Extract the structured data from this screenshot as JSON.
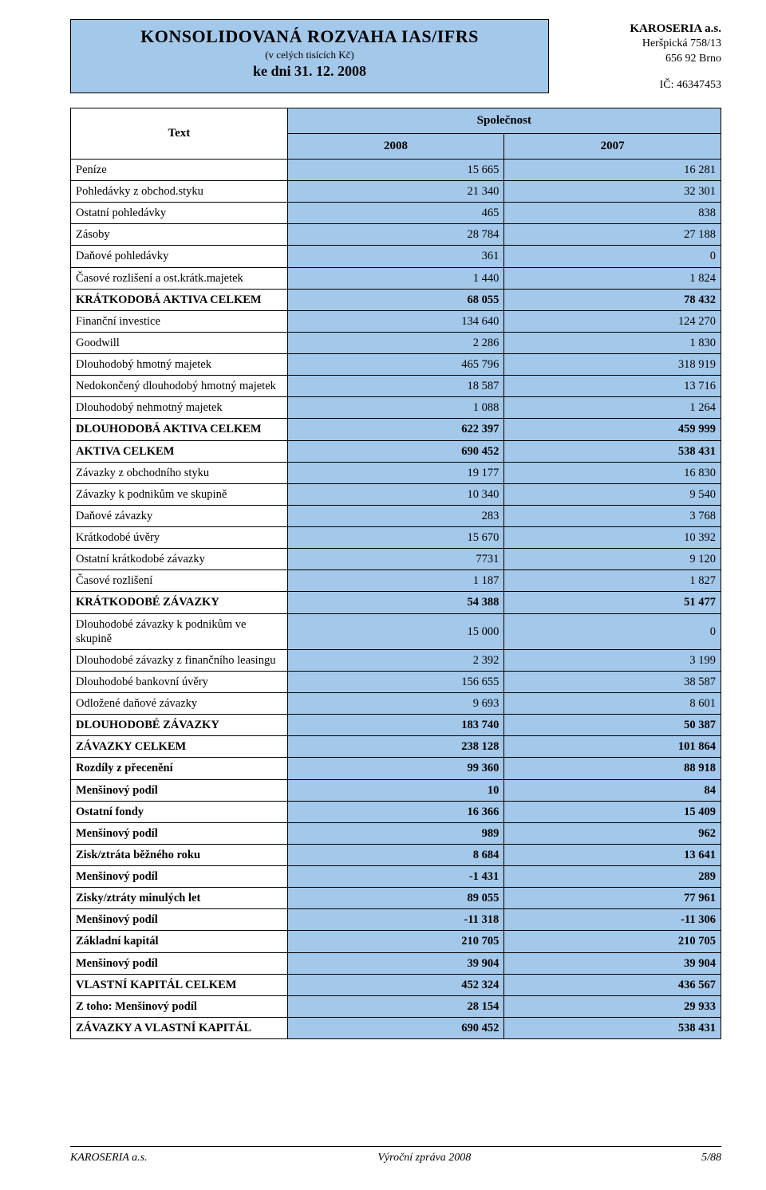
{
  "header": {
    "title": "KONSOLIDOVANÁ ROZVAHA IAS/IFRS",
    "subtitle": "(v celých tisících Kč)",
    "date_line": "ke dni 31. 12. 2008",
    "bg": "#a4c8ea"
  },
  "company": {
    "name": "KAROSERIA a.s.",
    "addr1": "Heršpická 758/13",
    "addr2": "656 92 Brno",
    "ic": "IČ: 46347453"
  },
  "table": {
    "head_text": "Text",
    "head_company": "Společnost",
    "year1": "2008",
    "year2": "2007",
    "rows": [
      {
        "label": "Peníze",
        "y1": "15 665",
        "y2": "16 281",
        "hl": true
      },
      {
        "label": "Pohledávky z obchod.styku",
        "y1": "21 340",
        "y2": "32 301",
        "hl": true
      },
      {
        "label": "Ostatní pohledávky",
        "y1": "465",
        "y2": "838",
        "hl": true
      },
      {
        "label": "Zásoby",
        "y1": "28 784",
        "y2": "27 188",
        "hl": true
      },
      {
        "label": "Daňové pohledávky",
        "y1": "361",
        "y2": "0",
        "hl": true
      },
      {
        "label": "Časové rozlišení a ost.krátk.majetek",
        "y1": "1 440",
        "y2": "1 824",
        "hl": true
      },
      {
        "label": "KRÁTKODOBÁ AKTIVA CELKEM",
        "y1": "68 055",
        "y2": "78 432",
        "hl": true,
        "bold": true
      },
      {
        "label": "Finanční investice",
        "y1": "134 640",
        "y2": "124 270",
        "hl": true
      },
      {
        "label": "Goodwill",
        "y1": "2 286",
        "y2": "1 830",
        "hl": true
      },
      {
        "label": "Dlouhodobý hmotný majetek",
        "y1": "465 796",
        "y2": "318 919",
        "hl": true
      },
      {
        "label": "Nedokončený dlouhodobý hmotný majetek",
        "y1": "18 587",
        "y2": "13 716",
        "hl": true
      },
      {
        "label": "Dlouhodobý nehmotný majetek",
        "y1": "1 088",
        "y2": "1 264",
        "hl": true
      },
      {
        "label": "DLOUHODOBÁ AKTIVA CELKEM",
        "y1": "622 397",
        "y2": "459 999",
        "hl": true,
        "bold": true
      },
      {
        "label": "AKTIVA CELKEM",
        "y1": "690 452",
        "y2": "538 431",
        "hl": true,
        "bold": true
      },
      {
        "label": "Závazky z obchodního styku",
        "y1": "19 177",
        "y2": "16 830",
        "hl": true
      },
      {
        "label": "Závazky k podnikům ve skupině",
        "y1": "10 340",
        "y2": "9 540",
        "hl": true
      },
      {
        "label": "Daňové závazky",
        "y1": "283",
        "y2": "3 768",
        "hl": true
      },
      {
        "label": "Krátkodobé úvěry",
        "y1": "15 670",
        "y2": "10 392",
        "hl": true
      },
      {
        "label": "Ostatní krátkodobé závazky",
        "y1": "7731",
        "y2": "9 120",
        "hl": true
      },
      {
        "label": "Časové rozlišení",
        "y1": "1 187",
        "y2": "1 827",
        "hl": true
      },
      {
        "label": "KRÁTKODOBÉ ZÁVAZKY",
        "y1": "54 388",
        "y2": "51 477",
        "hl": true,
        "bold": true
      },
      {
        "label": "Dlouhodobé závazky k podnikům ve skupině",
        "y1": "15 000",
        "y2": "0",
        "hl": true
      },
      {
        "label": "Dlouhodobé závazky z finančního leasingu",
        "y1": "2 392",
        "y2": "3 199",
        "hl": true
      },
      {
        "label": "Dlouhodobé bankovní úvěry",
        "y1": "156 655",
        "y2": "38 587",
        "hl": true
      },
      {
        "label": "Odložené daňové závazky",
        "y1": "9 693",
        "y2": "8 601",
        "hl": true
      },
      {
        "label": "DLOUHODOBÉ ZÁVAZKY",
        "y1": "183 740",
        "y2": "50 387",
        "hl": true,
        "bold": true
      },
      {
        "label": "ZÁVAZKY CELKEM",
        "y1": "238 128",
        "y2": "101 864",
        "hl": true,
        "bold": true
      },
      {
        "label": "Rozdíly z přecenění",
        "y1": "99 360",
        "y2": "88 918",
        "hl": true,
        "bold": true
      },
      {
        "label": "Menšinový podíl",
        "y1": "10",
        "y2": "84",
        "hl": true,
        "bold": true
      },
      {
        "label": "Ostatní fondy",
        "y1": "16 366",
        "y2": "15 409",
        "hl": true,
        "bold": true
      },
      {
        "label": "Menšinový podíl",
        "y1": "989",
        "y2": "962",
        "hl": true,
        "bold": true
      },
      {
        "label": "Zisk/ztráta běžného roku",
        "y1": "8 684",
        "y2": "13 641",
        "hl": true,
        "bold": true
      },
      {
        "label": "Menšinový podíl",
        "y1": "-1 431",
        "y2": "289",
        "hl": true,
        "bold": true
      },
      {
        "label": "Zisky/ztráty minulých let",
        "y1": "89 055",
        "y2": "77 961",
        "hl": true,
        "bold": true
      },
      {
        "label": "Menšinový podíl",
        "y1": "-11 318",
        "y2": "-11 306",
        "hl": true,
        "bold": true
      },
      {
        "label": "Základní kapitál",
        "y1": "210 705",
        "y2": "210 705",
        "hl": true,
        "bold": true
      },
      {
        "label": "Menšinový podíl",
        "y1": "39 904",
        "y2": "39 904",
        "hl": true,
        "bold": true
      },
      {
        "label": "VLASTNÍ  KAPITÁL CELKEM",
        "y1": "452 324",
        "y2": "436 567",
        "hl": true,
        "bold": true
      },
      {
        "label": "Z toho: Menšinový podíl",
        "y1": "28 154",
        "y2": "29 933",
        "hl": true,
        "bold": true
      },
      {
        "label": "ZÁVAZKY A VLASTNÍ KAPITÁL",
        "y1": "690 452",
        "y2": "538 431",
        "hl": true,
        "bold": true
      }
    ]
  },
  "footer": {
    "left": "KAROSERIA a.s.",
    "center": "Výroční zpráva 2008",
    "right": "5/88"
  },
  "colors": {
    "highlight": "#a4c8ea",
    "border": "#000000",
    "background": "#ffffff"
  }
}
